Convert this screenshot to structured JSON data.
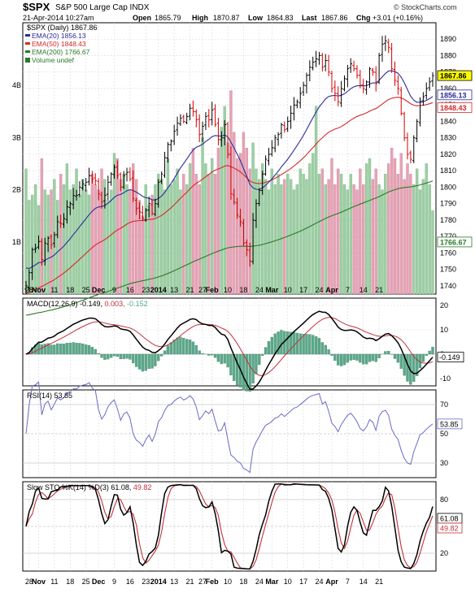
{
  "header": {
    "symbol": "$SPX",
    "name": "S&P 500 Large Cap INDX",
    "watermark": "© StockCharts.com",
    "date": "21-Apr-2014 10:27am",
    "open_label": "Open",
    "open": "1865.79",
    "high_label": "High",
    "high": "1870.87",
    "low_label": "Low",
    "low": "1864.83",
    "last_label": "Last",
    "last": "1867.86",
    "chg_label": "Chg",
    "chg": "+3.01 (+0.16%)"
  },
  "colors": {
    "ema20": "#2b2b9b",
    "ema50": "#d42a2a",
    "ema200": "#2a7a2a",
    "vol_up": "#9ecfa4",
    "vol_down": "#e6a3b5",
    "macd_line": "#000000",
    "macd_signal": "#c0323c",
    "macd_hist": "#5aa98a",
    "rsi": "#6a6ac8",
    "sto_k": "#000000",
    "sto_d": "#c0323c",
    "bar_up": "#000000",
    "bar_down": "#d40000"
  },
  "chart_data": [
    {
      "type": "line",
      "panel": "price",
      "legend_title": "$SPX (Daily) 1867.86",
      "legend": [
        {
          "label": "EMA(20) 1856.13",
          "color": "#2b2b9b"
        },
        {
          "label": "EMA(50) 1848.43",
          "color": "#d42a2a"
        },
        {
          "label": "EMA(200) 1766.67",
          "color": "#2a7a2a"
        },
        {
          "label": "Volume undef",
          "color": "#2a7a2a"
        }
      ],
      "ylim": [
        1735,
        1900
      ],
      "yticks": [
        "1890",
        "1880",
        "1870",
        "1860",
        "1850",
        "1840",
        "1830",
        "1820",
        "1810",
        "1800",
        "1790",
        "1780",
        "1770",
        "1760",
        "1750",
        "1740"
      ],
      "volume_ticks": [
        "4B",
        "3B",
        "2B",
        "1B"
      ],
      "volume_ylim": [
        0,
        5.2
      ],
      "last_labels": [
        {
          "text": "1867.86",
          "value": 1867.86,
          "bg": "#ffff00",
          "fg": "#000000"
        },
        {
          "text": "1856.13",
          "value": 1856.13,
          "bg": "#ffffff",
          "fg": "#2b2b9b"
        },
        {
          "text": "1848.43",
          "value": 1848.43,
          "bg": "#ffffff",
          "fg": "#d42a2a"
        },
        {
          "text": "1766.67",
          "value": 1766.67,
          "bg": "#ffffff",
          "fg": "#2a7a2a"
        }
      ],
      "x_labels": [
        "28",
        "Nov",
        "11",
        "18",
        "25",
        "Dec",
        "9",
        "16",
        "23",
        "2014",
        "13",
        "21",
        "27",
        "Feb",
        "10",
        "18",
        "24",
        "Mar",
        "10",
        "17",
        "24",
        "Apr",
        "7",
        "14",
        "21"
      ],
      "x_label_index": [
        1,
        4,
        9,
        14,
        19,
        23,
        28,
        33,
        38,
        42,
        47,
        52,
        56,
        59,
        64,
        69,
        74,
        78,
        83,
        88,
        93,
        97,
        102,
        107,
        112
      ],
      "close": [
        1740,
        1748,
        1762,
        1763,
        1767,
        1756,
        1766,
        1769,
        1765,
        1771,
        1779,
        1778,
        1781,
        1788,
        1790,
        1795,
        1795,
        1800,
        1802,
        1803,
        1807,
        1805,
        1804,
        1796,
        1791,
        1795,
        1803,
        1808,
        1812,
        1807,
        1800,
        1807,
        1809,
        1805,
        1793,
        1787,
        1785,
        1781,
        1786,
        1790,
        1784,
        1790,
        1803,
        1808,
        1818,
        1826,
        1828,
        1834,
        1839,
        1842,
        1840,
        1843,
        1848,
        1846,
        1841,
        1832,
        1837,
        1843,
        1841,
        1847,
        1838,
        1829,
        1830,
        1838,
        1820,
        1796,
        1791,
        1783,
        1779,
        1766,
        1762,
        1755,
        1780,
        1790,
        1798,
        1808,
        1817,
        1820,
        1824,
        1830,
        1832,
        1838,
        1835,
        1840,
        1845,
        1850,
        1852,
        1857,
        1862,
        1868,
        1873,
        1876,
        1878,
        1880,
        1873,
        1877,
        1870,
        1860,
        1857,
        1852,
        1860,
        1866,
        1872,
        1875,
        1872,
        1868,
        1862,
        1860,
        1864,
        1872,
        1870,
        1863,
        1880,
        1887,
        1889,
        1885,
        1872,
        1865,
        1860,
        1845,
        1830,
        1820,
        1817,
        1830,
        1840,
        1852,
        1855,
        1860,
        1864,
        1867.86
      ],
      "ema20_first": 1752,
      "ema50_first": 1735,
      "ema200_first": 1722,
      "volume": [
        2.4,
        1.8,
        1.9,
        2.1,
        1.7,
        2.6,
        2.0,
        1.9,
        2.0,
        2.2,
        1.8,
        2.3,
        2.1,
        2.5,
        2.0,
        2.1,
        2.4,
        1.9,
        2.2,
        2.0,
        1.9,
        2.3,
        2.1,
        2.0,
        2.4,
        2.2,
        1.8,
        2.0,
        2.7,
        2.6,
        2.2,
        2.3,
        2.1,
        2.0,
        2.5,
        2.2,
        1.8,
        1.5,
        2.1,
        1.7,
        1.9,
        2.1,
        2.3,
        2.2,
        2.0,
        2.6,
        2.1,
        2.2,
        2.4,
        2.0,
        2.3,
        2.1,
        2.5,
        2.8,
        2.3,
        2.1,
        3.0,
        2.5,
        2.3,
        2.6,
        2.3,
        2.8,
        3.2,
        3.6,
        2.9,
        3.9,
        3.1,
        2.6,
        2.7,
        3.1,
        2.8,
        2.4,
        2.9,
        2.4,
        2.2,
        2.5,
        2.2,
        2.0,
        2.4,
        2.1,
        2.3,
        2.1,
        2.2,
        2.3,
        2.2,
        2.0,
        2.1,
        2.4,
        2.3,
        2.2,
        2.5,
        2.7,
        3.6,
        2.3,
        2.4,
        2.1,
        2.2,
        2.6,
        2.1,
        2.4,
        2.3,
        2.1,
        2.0,
        2.3,
        2.1,
        2.0,
        2.4,
        2.1,
        2.5,
        2.6,
        2.2,
        2.4,
        2.1,
        2.0,
        2.3,
        2.5,
        2.8,
        2.6,
        2.3,
        2.7,
        2.2,
        2.5,
        2.3,
        2.1,
        2.4,
        2.0,
        2.2,
        2.5,
        2.1,
        1.6
      ]
    },
    {
      "type": "line",
      "panel": "macd",
      "legend": [
        {
          "label": "MACD(12,26,9) -0.149,",
          "color": "#000000"
        },
        {
          "label": " 0.003,",
          "color": "#c0323c"
        },
        {
          "label": " -0.152",
          "color": "#5aa98a"
        }
      ],
      "ylim": [
        -13,
        23
      ],
      "yticks": [
        "20",
        "10",
        "0",
        "-10"
      ],
      "last_label": "-0.149"
    },
    {
      "type": "line",
      "panel": "rsi",
      "legend": [
        {
          "label": "RSI(14) 53.85",
          "color": "#6a6ac8"
        }
      ],
      "ylim": [
        20,
        80
      ],
      "yticks": [
        "70",
        "50",
        "30"
      ],
      "last_label": "53.85"
    },
    {
      "type": "line",
      "panel": "slow_sto",
      "legend": [
        {
          "label": "Slow STO %K(14) %D(3) 61.08,",
          "color": "#000000"
        },
        {
          "label": " 49.82",
          "color": "#c0323c"
        }
      ],
      "ylim": [
        0,
        100
      ],
      "yticks": [
        "80",
        "50",
        "20"
      ],
      "last_labels": [
        "61.08",
        "49.82"
      ]
    }
  ]
}
